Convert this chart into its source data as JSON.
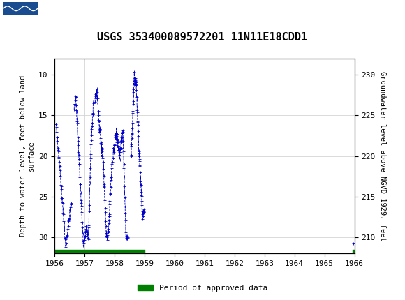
{
  "title": "USGS 353400089572201 11N11E18CDD1",
  "ylabel_left": "Depth to water level, feet below land\nsurface",
  "ylabel_right": "Groundwater level above NGVD 1929, feet",
  "xlim": [
    1956,
    1966
  ],
  "ylim_left": [
    32,
    8
  ],
  "ylim_right": [
    208,
    232
  ],
  "yticks_left": [
    10,
    15,
    20,
    25,
    30
  ],
  "yticks_right": [
    210,
    215,
    220,
    225,
    230
  ],
  "xticks": [
    1956,
    1957,
    1958,
    1959,
    1960,
    1961,
    1962,
    1963,
    1964,
    1965,
    1966
  ],
  "data_color": "#0000CC",
  "approved_color": "#008000",
  "header_color": "#1a6b3c",
  "background_color": "#ffffff",
  "grid_color": "#cccccc",
  "legend_label": "Period of approved data",
  "approved_bar_y": 31.5,
  "approved_bar_height": 0.5,
  "approved_x_start": 1956.0,
  "approved_x_end": 1959.0,
  "approved_x2_start": 1965.95,
  "approved_x2_end": 1966.05
}
